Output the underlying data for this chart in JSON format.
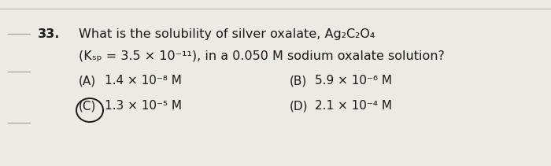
{
  "background_color": "#ede9e4",
  "text_color": "#1a1a1a",
  "line_color": "#999999",
  "circle_color": "#1a1a1a",
  "q_num": "33.",
  "line1": "What is the solubility of silver oxalate, Ag₂C₂O₄",
  "line2": "(Kₛₚ = 3.5 × 10⁻¹¹), in a 0.050 M sodium oxalate solution?",
  "line2_plain": "(Ksp = 3.5 × 10-11), in a 0.050 M sodium oxalate solution?",
  "ans_A": "(A)  1.4 × 10⁻⁸ M",
  "ans_B": "(B)  5.9 × 10⁻⁶ M",
  "ans_C": "(C)  1.3 × 10⁻⁵ M",
  "ans_D": "(D)  2.1 × 10⁻⁴ M",
  "fontsize_main": 11.5,
  "fontsize_ans": 11.0
}
